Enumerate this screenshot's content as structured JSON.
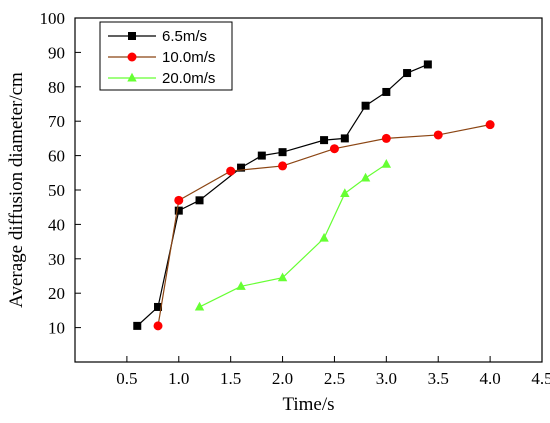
{
  "chart_data": {
    "type": "line",
    "xlabel": "Time/s",
    "ylabel": "Average diffusion diameter/cm",
    "xlim": [
      0,
      4.5
    ],
    "ylim": [
      0,
      100
    ],
    "xticks": [
      0.5,
      1.0,
      1.5,
      2.0,
      2.5,
      3.0,
      3.5,
      4.0,
      4.5
    ],
    "xtick_labels": [
      "0.5",
      "1.0",
      "1.5",
      "2.0",
      "2.5",
      "3.0",
      "3.5",
      "4.0",
      "4.5"
    ],
    "yticks": [
      10,
      20,
      30,
      40,
      50,
      60,
      70,
      80,
      90,
      100
    ],
    "ytick_labels": [
      "10",
      "20",
      "30",
      "40",
      "50",
      "60",
      "70",
      "80",
      "90",
      "100"
    ],
    "grid": false,
    "legend_position": "top-left",
    "series": [
      {
        "name": "6.5m/s",
        "marker": "square",
        "marker_color": "#000000",
        "line_color": "#000000",
        "x": [
          0.6,
          0.8,
          1.0,
          1.2,
          1.6,
          1.8,
          2.0,
          2.4,
          2.6,
          2.8,
          3.0,
          3.2,
          3.4
        ],
        "y": [
          10.5,
          16.0,
          44.0,
          47.0,
          56.5,
          60.0,
          61.0,
          64.5,
          65.0,
          74.5,
          78.5,
          84.0,
          86.5
        ]
      },
      {
        "name": "10.0m/s",
        "marker": "circle",
        "marker_color": "#ff0000",
        "line_color": "#8b4513",
        "x": [
          0.8,
          1.0,
          1.5,
          2.0,
          2.5,
          3.0,
          3.5,
          4.0
        ],
        "y": [
          10.5,
          47.0,
          55.5,
          57.0,
          62.0,
          65.0,
          66.0,
          69.0
        ]
      },
      {
        "name": "20.0m/s",
        "marker": "triangle",
        "marker_color": "#66ff33",
        "line_color": "#66ff33",
        "x": [
          1.2,
          1.6,
          2.0,
          2.4,
          2.6,
          2.8,
          3.0
        ],
        "y": [
          16.0,
          22.0,
          24.5,
          36.0,
          49.0,
          53.5,
          57.5
        ]
      }
    ]
  }
}
